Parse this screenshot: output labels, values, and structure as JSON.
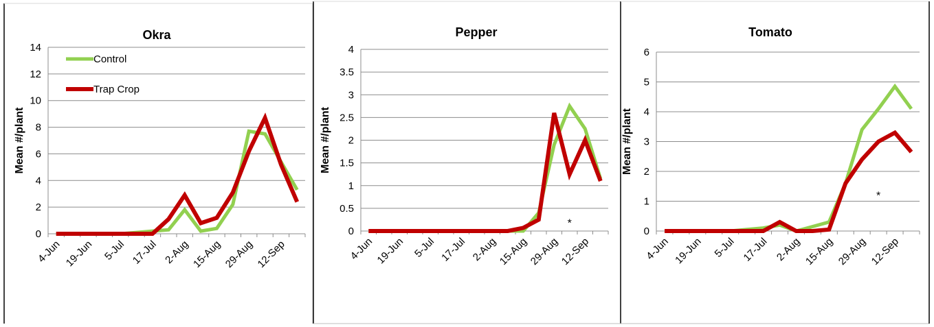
{
  "chart_data": [
    {
      "type": "line",
      "title": "Okra",
      "ylabel": "Mean #/plant",
      "ylim": [
        0,
        14
      ],
      "yticks": [
        "0",
        "2",
        "4",
        "6",
        "8",
        "10",
        "12",
        "14"
      ],
      "categories": [
        "4-Jun",
        "",
        "19-Jun",
        "",
        "5-Jul",
        "",
        "17-Jul",
        "",
        "2-Aug",
        "",
        "15-Aug",
        "",
        "29-Aug",
        "",
        "12-Sep",
        ""
      ],
      "xtick_labels": [
        "4-Jun",
        "19-Jun",
        "5-Jul",
        "17-Jul",
        "2-Aug",
        "15-Aug",
        "29-Aug",
        "12-Sep"
      ],
      "legend": [
        "Control",
        "Trap Crop"
      ],
      "legend_position": "top-left",
      "annotations": [],
      "series": [
        {
          "name": "Control",
          "color": "#92d050",
          "values": [
            0,
            0,
            0,
            0,
            0,
            0.1,
            0.2,
            0.3,
            1.8,
            0.2,
            0.4,
            2.2,
            7.7,
            7.5,
            5.4,
            3.3
          ]
        },
        {
          "name": "Trap Crop",
          "color": "#c00000",
          "values": [
            0,
            0,
            0,
            0,
            0,
            0,
            0,
            1.1,
            2.9,
            0.8,
            1.2,
            3.1,
            6.2,
            8.7,
            5.2,
            2.4
          ]
        }
      ]
    },
    {
      "type": "line",
      "title": "Pepper",
      "ylabel": "Mean #/plant",
      "ylim": [
        0,
        4
      ],
      "yticks": [
        "0",
        "0.5",
        "1",
        "1.5",
        "2",
        "2.5",
        "3",
        "3.5",
        "4"
      ],
      "categories": [
        "4-Jun",
        "",
        "19-Jun",
        "",
        "5-Jul",
        "",
        "17-Jul",
        "",
        "2-Aug",
        "",
        "15-Aug",
        "",
        "29-Aug",
        "",
        "12-Sep",
        ""
      ],
      "xtick_labels": [
        "4-Jun",
        "19-Jun",
        "5-Jul",
        "17-Jul",
        "2-Aug",
        "15-Aug",
        "29-Aug",
        "12-Sep"
      ],
      "legend": [],
      "annotations": [
        {
          "text": "*",
          "x_index": 13,
          "y": 0.22
        }
      ],
      "series": [
        {
          "name": "Control",
          "color": "#92d050",
          "values": [
            0,
            0,
            0,
            0,
            0,
            0,
            0,
            0,
            0,
            0,
            0,
            0.4,
            1.9,
            2.75,
            2.25,
            1.15
          ]
        },
        {
          "name": "Trap Crop",
          "color": "#c00000",
          "values": [
            0,
            0,
            0,
            0,
            0,
            0,
            0,
            0,
            0,
            0,
            0.07,
            0.25,
            2.6,
            1.25,
            2.0,
            1.1
          ]
        }
      ]
    },
    {
      "type": "line",
      "title": "Tomato",
      "ylabel": "Mean #/plant",
      "ylim": [
        0,
        6
      ],
      "yticks": [
        "0",
        "1",
        "2",
        "3",
        "4",
        "5",
        "6"
      ],
      "categories": [
        "4-Jun",
        "",
        "19-Jun",
        "",
        "5-Jul",
        "",
        "17-Jul",
        "",
        "2-Aug",
        "",
        "15-Aug",
        "",
        "29-Aug",
        "",
        "12-Sep",
        ""
      ],
      "xtick_labels": [
        "4-Jun",
        "19-Jun",
        "5-Jul",
        "17-Jul",
        "2-Aug",
        "15-Aug",
        "29-Aug",
        "12-Sep"
      ],
      "legend": [],
      "annotations": [
        {
          "text": "*",
          "x_index": 13,
          "y": 1.25
        }
      ],
      "series": [
        {
          "name": "Control",
          "color": "#92d050",
          "values": [
            0,
            0,
            0,
            0,
            0,
            0.05,
            0.1,
            0.2,
            0,
            0.15,
            0.3,
            1.6,
            3.4,
            4.1,
            4.85,
            4.1
          ]
        },
        {
          "name": "Trap Crop",
          "color": "#c00000",
          "values": [
            0,
            0,
            0,
            0,
            0,
            0,
            0,
            0.3,
            0,
            0,
            0.05,
            1.6,
            2.4,
            3.0,
            3.3,
            2.65
          ]
        }
      ]
    }
  ]
}
